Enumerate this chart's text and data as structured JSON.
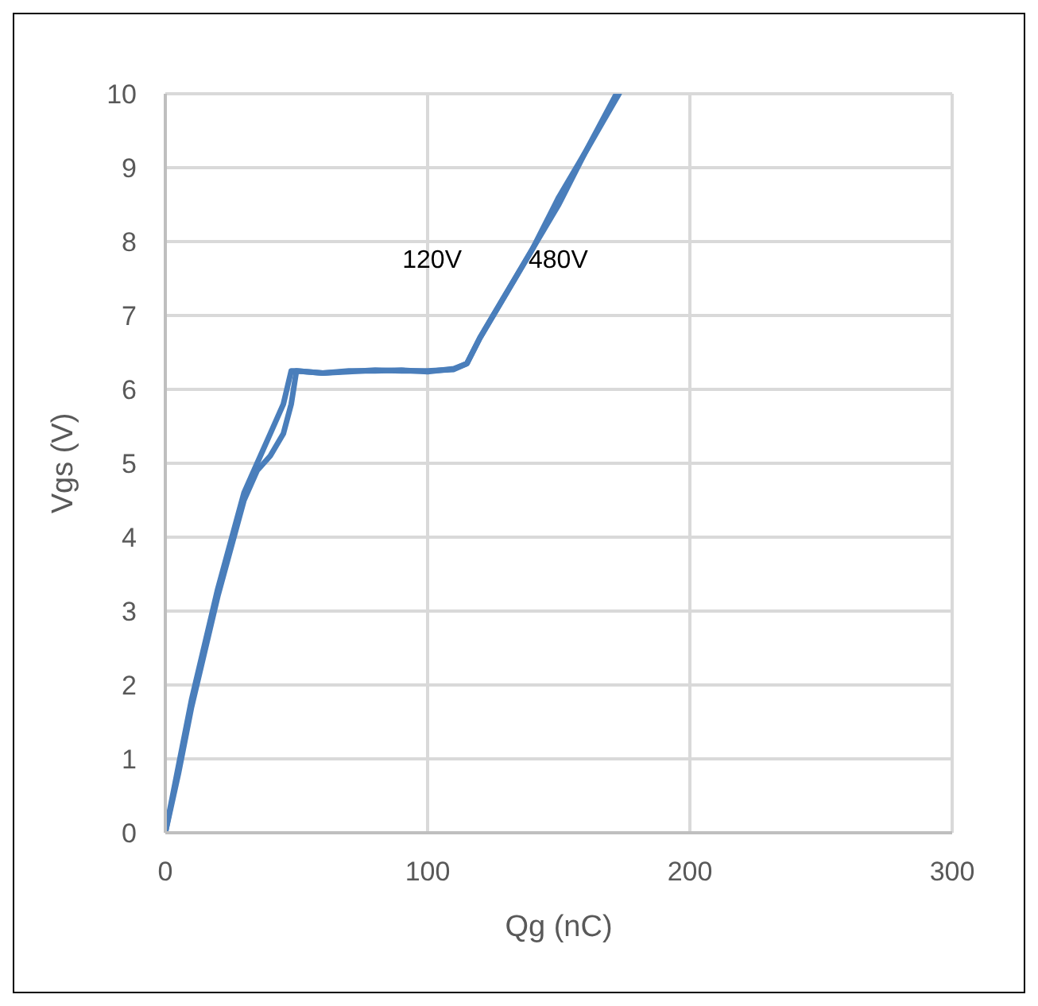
{
  "chart_data": {
    "type": "line",
    "xlabel": "Qg (nC)",
    "ylabel": "Vgs (V)",
    "xlim": [
      0,
      300
    ],
    "xticks": [
      0,
      100,
      200,
      300
    ],
    "ylim": [
      0,
      10
    ],
    "yticks": [
      0,
      1,
      2,
      3,
      4,
      5,
      6,
      7,
      8,
      9,
      10
    ],
    "grid": true,
    "legend": false,
    "marker": "none",
    "line_style": "solid",
    "series": [
      {
        "name": "120V",
        "color": "#4a7ebb",
        "x": [
          0,
          5,
          10,
          20,
          30,
          35,
          40,
          45,
          48,
          50,
          60,
          70,
          80,
          90,
          100,
          110,
          115,
          120,
          130,
          140,
          150,
          160,
          172
        ],
        "values": [
          0,
          0.9,
          1.8,
          3.3,
          4.6,
          5.0,
          5.4,
          5.8,
          6.25,
          6.25,
          6.22,
          6.24,
          6.26,
          6.25,
          6.25,
          6.27,
          6.35,
          6.7,
          7.3,
          7.9,
          8.6,
          9.2,
          10
        ]
      },
      {
        "name": "480V",
        "color": "#4a7ebb",
        "x": [
          0,
          5,
          10,
          20,
          30,
          35,
          40,
          45,
          48,
          50,
          60,
          70,
          80,
          90,
          100,
          110,
          115,
          120,
          130,
          140,
          150,
          160,
          173
        ],
        "values": [
          0,
          0.8,
          1.7,
          3.2,
          4.5,
          4.9,
          5.1,
          5.4,
          5.8,
          6.25,
          6.22,
          6.25,
          6.25,
          6.26,
          6.24,
          6.28,
          6.35,
          6.7,
          7.3,
          7.9,
          8.5,
          9.2,
          10
        ]
      }
    ]
  }
}
